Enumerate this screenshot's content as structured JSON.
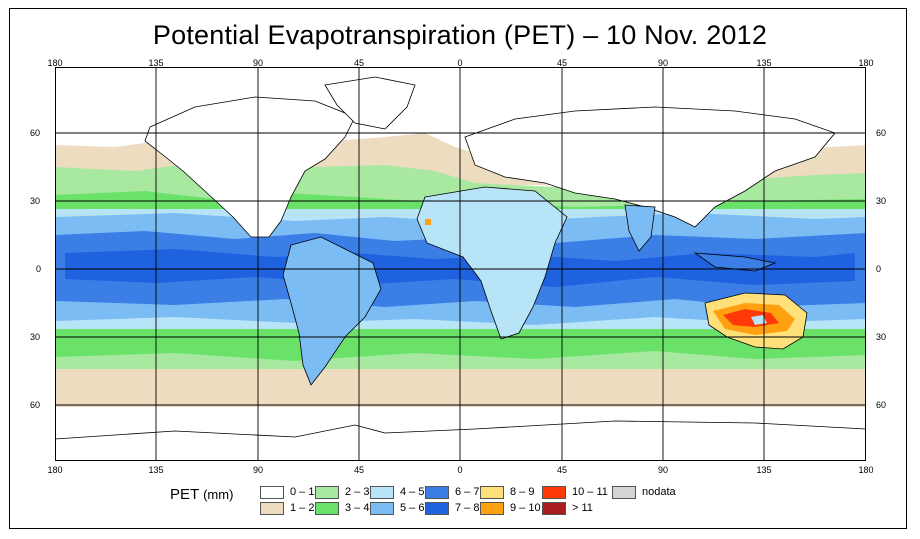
{
  "title": "Potential Evapotranspiration (PET) – 10 Nov. 2012",
  "lon_ticks": [
    "180",
    "135",
    "90",
    "45",
    "0",
    "45",
    "90",
    "135",
    "180"
  ],
  "lat_ticks": [
    "60",
    "30",
    "0",
    "30",
    "60"
  ],
  "legend": {
    "title": "PET",
    "units": "(mm)",
    "items": [
      {
        "label": "0 – 1",
        "color": "#ffffff"
      },
      {
        "label": "1 – 2",
        "color": "#eedcc0"
      },
      {
        "label": "2 – 3",
        "color": "#a8e8a0"
      },
      {
        "label": "3 – 4",
        "color": "#6ae26a"
      },
      {
        "label": "4 – 5",
        "color": "#b8e4f8"
      },
      {
        "label": "5 – 6",
        "color": "#7cbcf4"
      },
      {
        "label": "6 – 7",
        "color": "#3a7ee6"
      },
      {
        "label": "7 – 8",
        "color": "#1e62e0"
      },
      {
        "label": "8 – 9",
        "color": "#ffe07a"
      },
      {
        "label": "9 – 10",
        "color": "#ffa010"
      },
      {
        "label": "10 – 11",
        "color": "#ff3a08"
      },
      {
        "label": "> 11",
        "color": "#a81e1e"
      },
      {
        "label": "nodata",
        "color": "#d4d4d4"
      }
    ]
  }
}
